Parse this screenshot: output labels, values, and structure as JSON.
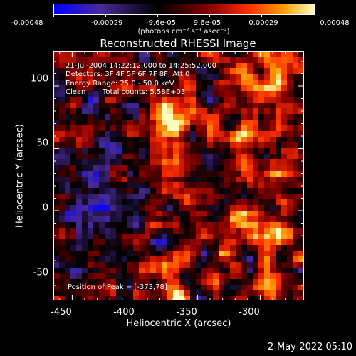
{
  "colorbar": {
    "ticks": [
      "-0.00048",
      "-0.00029",
      "-9.6e-05",
      "9.6e-05",
      "0.00029",
      "0.00048"
    ],
    "unit": "(photons cm⁻² s⁻¹ asec⁻²)"
  },
  "title": "Reconstructed RHESSI Image",
  "annotations": {
    "time_range": "21-Jul-2004 14:22:12.000 to 14:25:52.000",
    "detectors": "Detectors: 3F 4F 5F 6F 7F 8F, Att 0",
    "energy_range": "Energy Range: 25.0 - 50.0 keV",
    "algorithm": "Clean",
    "total_counts": "Total counts: 5.58E+03",
    "peak_position": "Position of Peak = [-373,78]"
  },
  "axes": {
    "xlabel": "Heliocentric X (arcsec)",
    "ylabel": "Heliocentric Y (arcsec)",
    "xticks": [
      "-450",
      "-400",
      "-350",
      "-300"
    ],
    "yticks": [
      "100",
      "50",
      "0",
      "-50"
    ],
    "xlim": [
      -465,
      -265
    ],
    "ylim": [
      -72,
      128
    ]
  },
  "peak": {
    "x": -373,
    "y": 78
  },
  "footer": {
    "timestamp": "2-May-2022 05:10"
  },
  "colors": {
    "colormap": [
      "#0000ff",
      "#4a2a9a",
      "#000000",
      "#8a0000",
      "#ff3000",
      "#ff9000",
      "#ffffa0"
    ]
  }
}
